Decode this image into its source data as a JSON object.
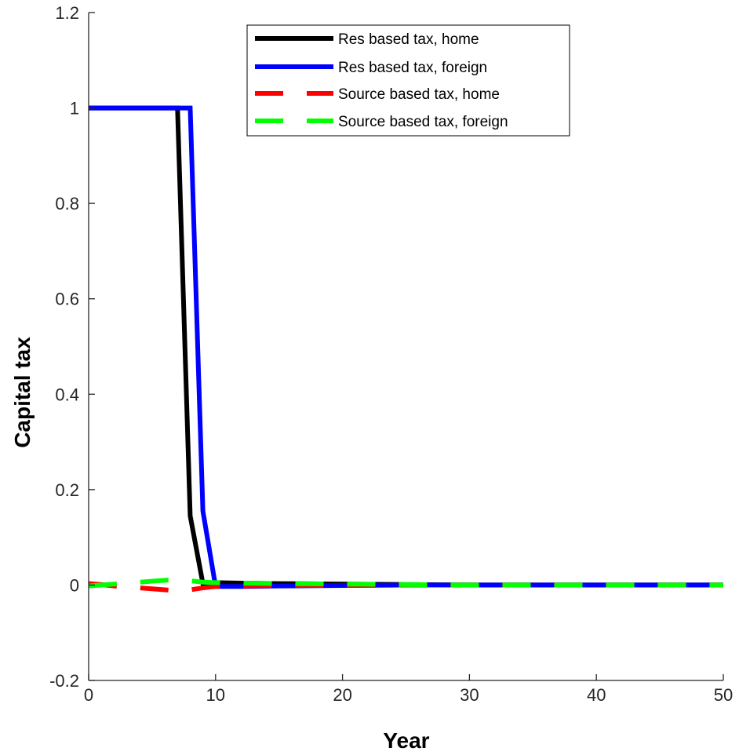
{
  "chart_data": {
    "type": "line",
    "title": "",
    "xlabel": "Year",
    "ylabel": "Capital tax",
    "xlim": [
      0,
      50
    ],
    "ylim": [
      -0.2,
      1.2
    ],
    "xticks": [
      0,
      10,
      20,
      30,
      40,
      50
    ],
    "xtick_labels": [
      "0",
      "10",
      "20",
      "30",
      "40",
      "50"
    ],
    "yticks": [
      -0.2,
      0,
      0.2,
      0.4,
      0.6,
      0.8,
      1,
      1.2
    ],
    "ytick_labels": [
      "-0.2",
      "0",
      "0.2",
      "0.4",
      "0.6",
      "0.8",
      "1",
      "1.2"
    ],
    "grid": false,
    "legend_position": "top-right",
    "series": [
      {
        "name": "Res based tax, home",
        "color": "#000000",
        "style": "solid",
        "x": [
          0,
          1,
          2,
          3,
          4,
          5,
          6,
          7,
          8,
          9,
          10,
          12,
          15,
          20,
          25,
          30,
          35,
          40,
          45,
          50
        ],
        "y": [
          1,
          1,
          1,
          1,
          1,
          1,
          1,
          1,
          0.145,
          0.003,
          0.005,
          0.004,
          0.003,
          0.002,
          0.001,
          0.0,
          0.0,
          0.0,
          0.0,
          0.0
        ]
      },
      {
        "name": "Res based tax, foreign",
        "color": "#0000ff",
        "style": "solid",
        "x": [
          0,
          1,
          2,
          3,
          4,
          5,
          6,
          7,
          8,
          9,
          10,
          12,
          15,
          20,
          25,
          30,
          35,
          40,
          45,
          50
        ],
        "y": [
          1,
          1,
          1,
          1,
          1,
          1,
          1,
          1,
          1,
          0.155,
          -0.003,
          -0.003,
          -0.002,
          -0.001,
          0.0,
          0.0,
          0.0,
          0.0,
          0.0,
          0.0
        ]
      },
      {
        "name": "Source based tax, home",
        "color": "#ff0000",
        "style": "dashed",
        "x": [
          0,
          1,
          2,
          3,
          4,
          5,
          6,
          7,
          8,
          9,
          10,
          12,
          15,
          20,
          25,
          30,
          35,
          40,
          45,
          50
        ],
        "y": [
          0.003,
          0.001,
          -0.002,
          -0.004,
          -0.006,
          -0.008,
          -0.01,
          -0.012,
          -0.01,
          -0.006,
          -0.003,
          -0.002,
          -0.001,
          -0.001,
          0.0,
          0.0,
          0.0,
          0.0,
          0.0,
          0.0
        ]
      },
      {
        "name": "Source based tax, foreign",
        "color": "#00ff00",
        "style": "dashed",
        "x": [
          0,
          1,
          2,
          3,
          4,
          5,
          6,
          7,
          8,
          9,
          10,
          12,
          15,
          20,
          25,
          30,
          35,
          40,
          45,
          50
        ],
        "y": [
          -0.002,
          0.0,
          0.002,
          0.004,
          0.006,
          0.008,
          0.01,
          0.011,
          0.009,
          0.006,
          0.005,
          0.004,
          0.003,
          0.002,
          0.001,
          0.0,
          0.0,
          0.0,
          0.0,
          0.0
        ]
      }
    ]
  }
}
